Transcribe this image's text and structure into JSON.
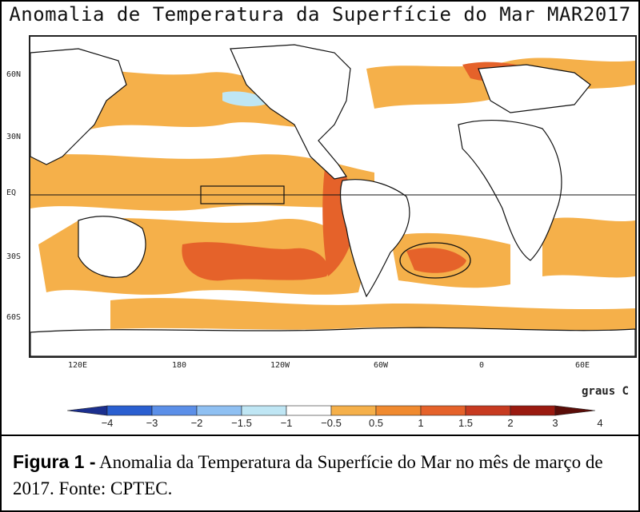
{
  "title": "Anomalia de Temperatura da Superfície do Mar MAR2017",
  "map": {
    "lat_labels": [
      "60N",
      "30N",
      "EQ",
      "30S",
      "60S"
    ],
    "lon_labels": [
      "120E",
      "180",
      "120W",
      "60W",
      "0",
      "60E"
    ],
    "units_label": "graus C"
  },
  "colorbar": {
    "ticks": [
      "−4",
      "−3",
      "−2",
      "−1.5",
      "−1",
      "−0.5",
      "0.5",
      "1",
      "1.5",
      "2",
      "3",
      "4"
    ],
    "colors": [
      "#1b2f8e",
      "#2a5fd0",
      "#5b8fe8",
      "#8fc0f2",
      "#bfe6f4",
      "#ffffff",
      "#f5b04a",
      "#f08a2f",
      "#e5622a",
      "#c73a20",
      "#9a1a10",
      "#5a0d08"
    ]
  },
  "caption": {
    "figure_label": "Figura 1 -",
    "text": "Anomalia da Temperatura da Superfície do Mar no mês de março de 2017. Fonte: CPTEC."
  }
}
